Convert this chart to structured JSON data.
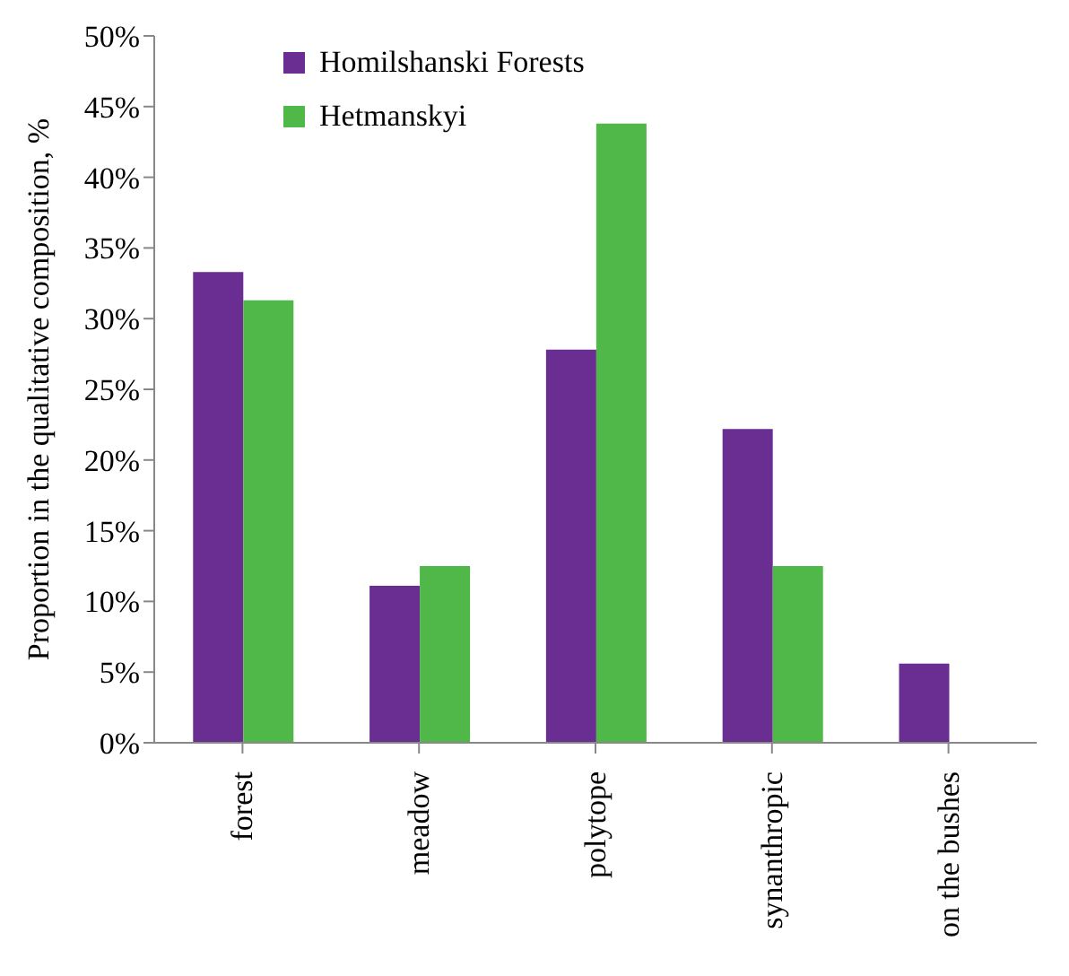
{
  "chart_data": {
    "type": "bar",
    "ylabel": "Proportion in the qualitative composition, %",
    "categories": [
      "forest",
      "meadow",
      "polytope",
      "synanthropic",
      "on the bushes"
    ],
    "series": [
      {
        "name": "Homilshanski Forests",
        "color": "#6a2d91",
        "values": [
          33.3,
          11.1,
          27.8,
          22.2,
          5.6
        ]
      },
      {
        "name": "Hetmanskyi",
        "color": "#50b848",
        "values": [
          31.3,
          12.5,
          43.8,
          12.5,
          null
        ]
      }
    ],
    "ylim": [
      0,
      50
    ],
    "yticks": [
      {
        "value": 0,
        "label": "0%"
      },
      {
        "value": 5,
        "label": "5%"
      },
      {
        "value": 10,
        "label": "10%"
      },
      {
        "value": 15,
        "label": "15%"
      },
      {
        "value": 20,
        "label": "20%"
      },
      {
        "value": 25,
        "label": "25%"
      },
      {
        "value": 30,
        "label": "30%"
      },
      {
        "value": 35,
        "label": "35%"
      },
      {
        "value": 40,
        "label": "40%"
      },
      {
        "value": 45,
        "label": "45%"
      },
      {
        "value": 50,
        "label": "50%"
      }
    ],
    "grid": false,
    "legend": "top left"
  }
}
